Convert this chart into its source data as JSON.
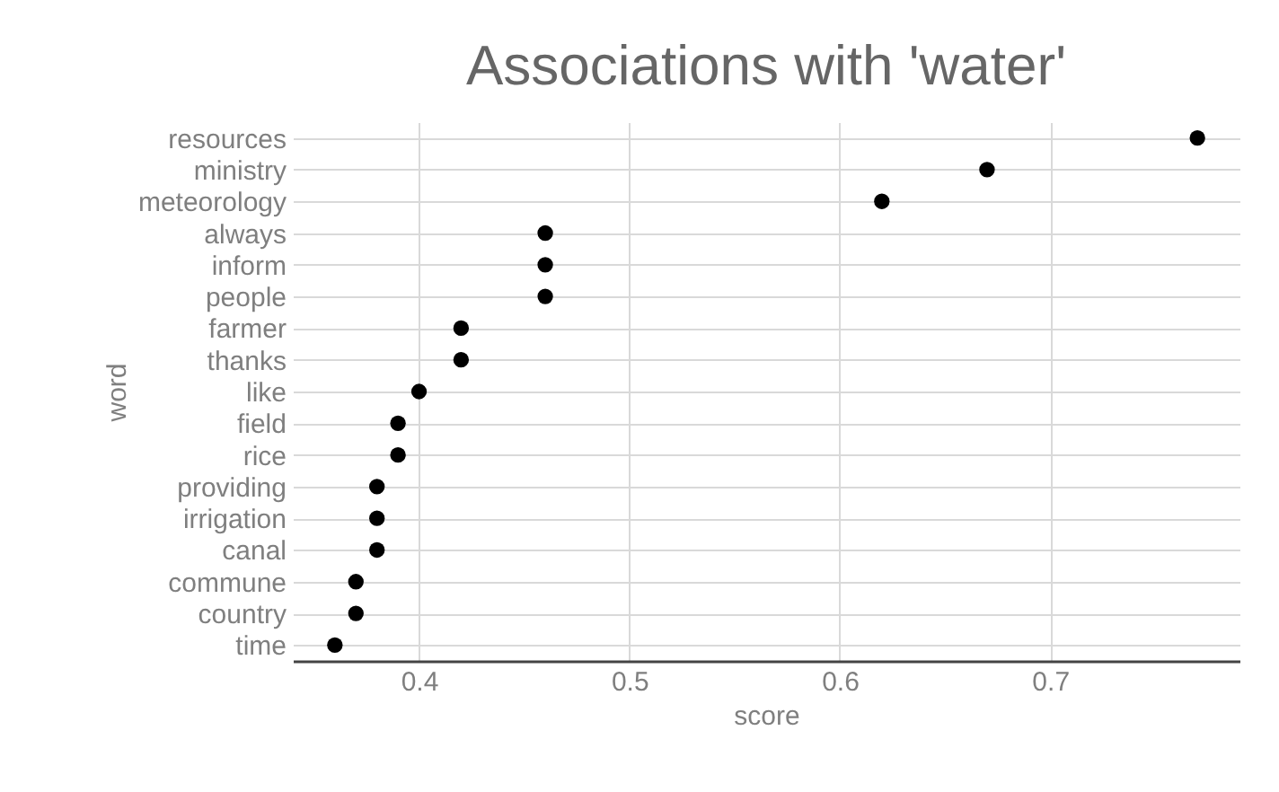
{
  "chart_data": {
    "type": "scatter",
    "title": "Associations with 'water'",
    "xlabel": "score",
    "ylabel": "word",
    "categories": [
      "resources",
      "ministry",
      "meteorology",
      "always",
      "inform",
      "people",
      "farmer",
      "thanks",
      "like",
      "field",
      "rice",
      "providing",
      "irrigation",
      "canal",
      "commune",
      "country",
      "time"
    ],
    "orientation": "horizontal",
    "series": [
      {
        "color": "#000000",
        "values": [
          0.77,
          0.67,
          0.62,
          0.46,
          0.46,
          0.46,
          0.42,
          0.42,
          0.4,
          0.39,
          0.39,
          0.38,
          0.38,
          0.38,
          0.37,
          0.37,
          0.36
        ]
      }
    ],
    "xlim": [
      0.34,
      0.79
    ],
    "xticks": [
      0.4,
      0.5,
      0.6,
      0.7
    ],
    "grid": true,
    "marker": "circle"
  }
}
